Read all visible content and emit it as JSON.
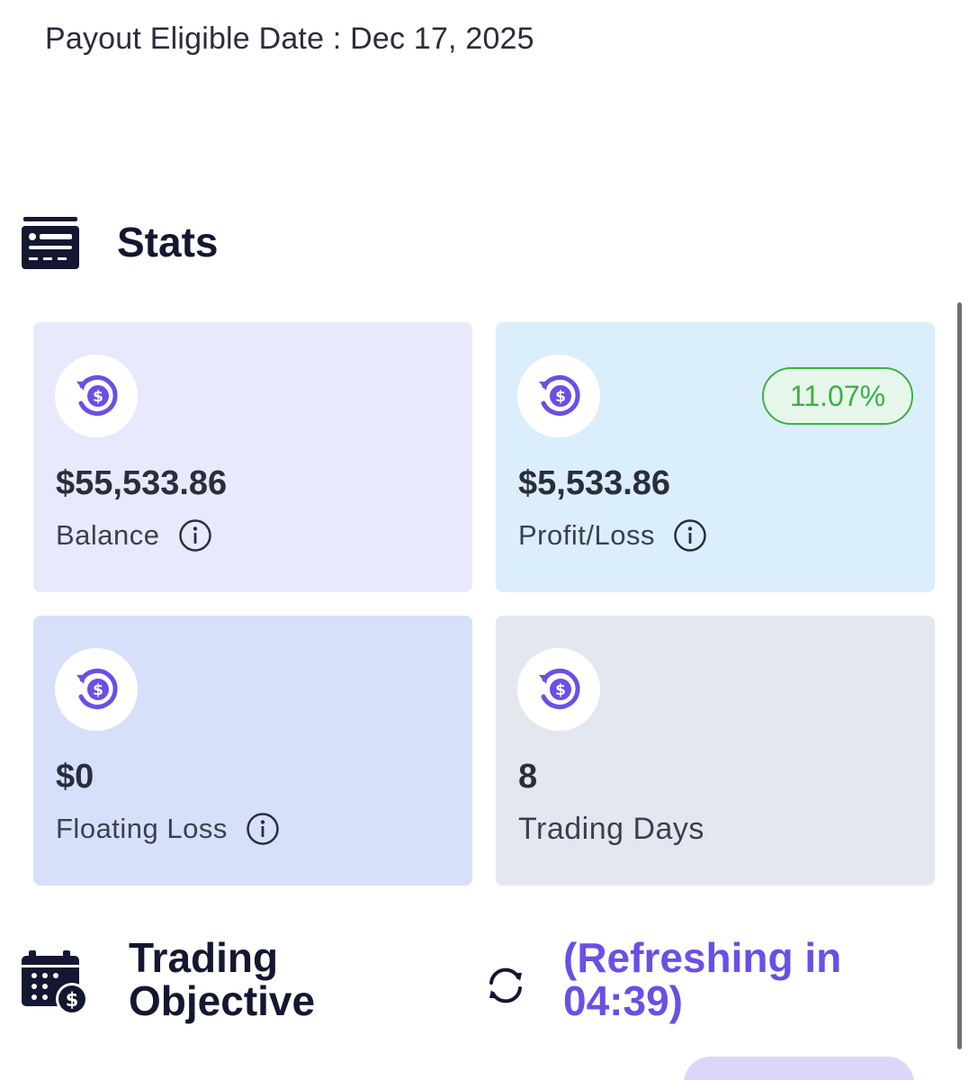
{
  "payout": {
    "text": "Payout Eligible Date : Dec 17, 2025"
  },
  "stats": {
    "title": "Stats",
    "icon": "stats-dashboard-icon",
    "cards": [
      {
        "value": "$55,533.86",
        "label": "Balance",
        "icon": "dollar-refresh-icon",
        "has_info": true,
        "background": "#e9e9fd"
      },
      {
        "value": "$5,533.86",
        "label": "Profit/Loss",
        "icon": "dollar-refresh-icon",
        "has_info": true,
        "badge": "11.07%",
        "badge_color": "#3fae47",
        "background": "#dbeefb"
      },
      {
        "value": "$0",
        "label": "Floating Loss",
        "icon": "dollar-refresh-icon",
        "has_info": true,
        "background": "#d6e0fb"
      },
      {
        "value": "8",
        "label": "Trading Days",
        "icon": "dollar-refresh-icon",
        "has_info": false,
        "background": "#e3e8f0"
      }
    ]
  },
  "objective": {
    "title": "Trading Objective",
    "icon": "calendar-dollar-icon",
    "refresh_icon": "refresh-icon",
    "refresh_text": "(Refreshing in 04:39)",
    "accent": "#6a4fe6"
  },
  "colors": {
    "icon_purple": "#6a4fe6",
    "heading": "#141732",
    "positive": "#3fae47"
  }
}
